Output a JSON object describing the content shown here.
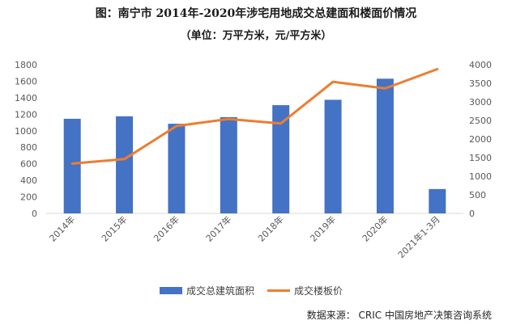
{
  "chart_data": {
    "type": "bar",
    "title": "图：南宁市 2014年-2020年涉宅用地成交总建面和楼面价情况",
    "subtitle": "（单位：万平方米，元/平方米）",
    "categories": [
      "2014年",
      "2015年",
      "2016年",
      "2017年",
      "2018年",
      "2019年",
      "2020年",
      "2021年1-3月"
    ],
    "left_axis": {
      "min": 0,
      "max": 1800,
      "step": 200,
      "ticks": [
        "0",
        "200",
        "400",
        "600",
        "800",
        "1000",
        "1200",
        "1400",
        "1600",
        "1800"
      ]
    },
    "right_axis": {
      "min": 0,
      "max": 4000,
      "step": 500,
      "ticks": [
        "0",
        "500",
        "1000",
        "1500",
        "2000",
        "2500",
        "3000",
        "3500",
        "4000"
      ]
    },
    "series": [
      {
        "name": "成交总建筑面积",
        "type": "bar",
        "axis": "left",
        "color": "#4472C4",
        "values": [
          1145,
          1175,
          1085,
          1165,
          1310,
          1375,
          1630,
          295
        ]
      },
      {
        "name": "成交楼板价",
        "type": "line",
        "axis": "right",
        "color": "#ED7D31",
        "values": [
          1340,
          1460,
          2350,
          2540,
          2420,
          3540,
          3360,
          3880
        ]
      }
    ],
    "legend_position": "bottom",
    "grid": false
  },
  "source_text": "数据来源： CRIC 中国房地产决策咨询系统"
}
